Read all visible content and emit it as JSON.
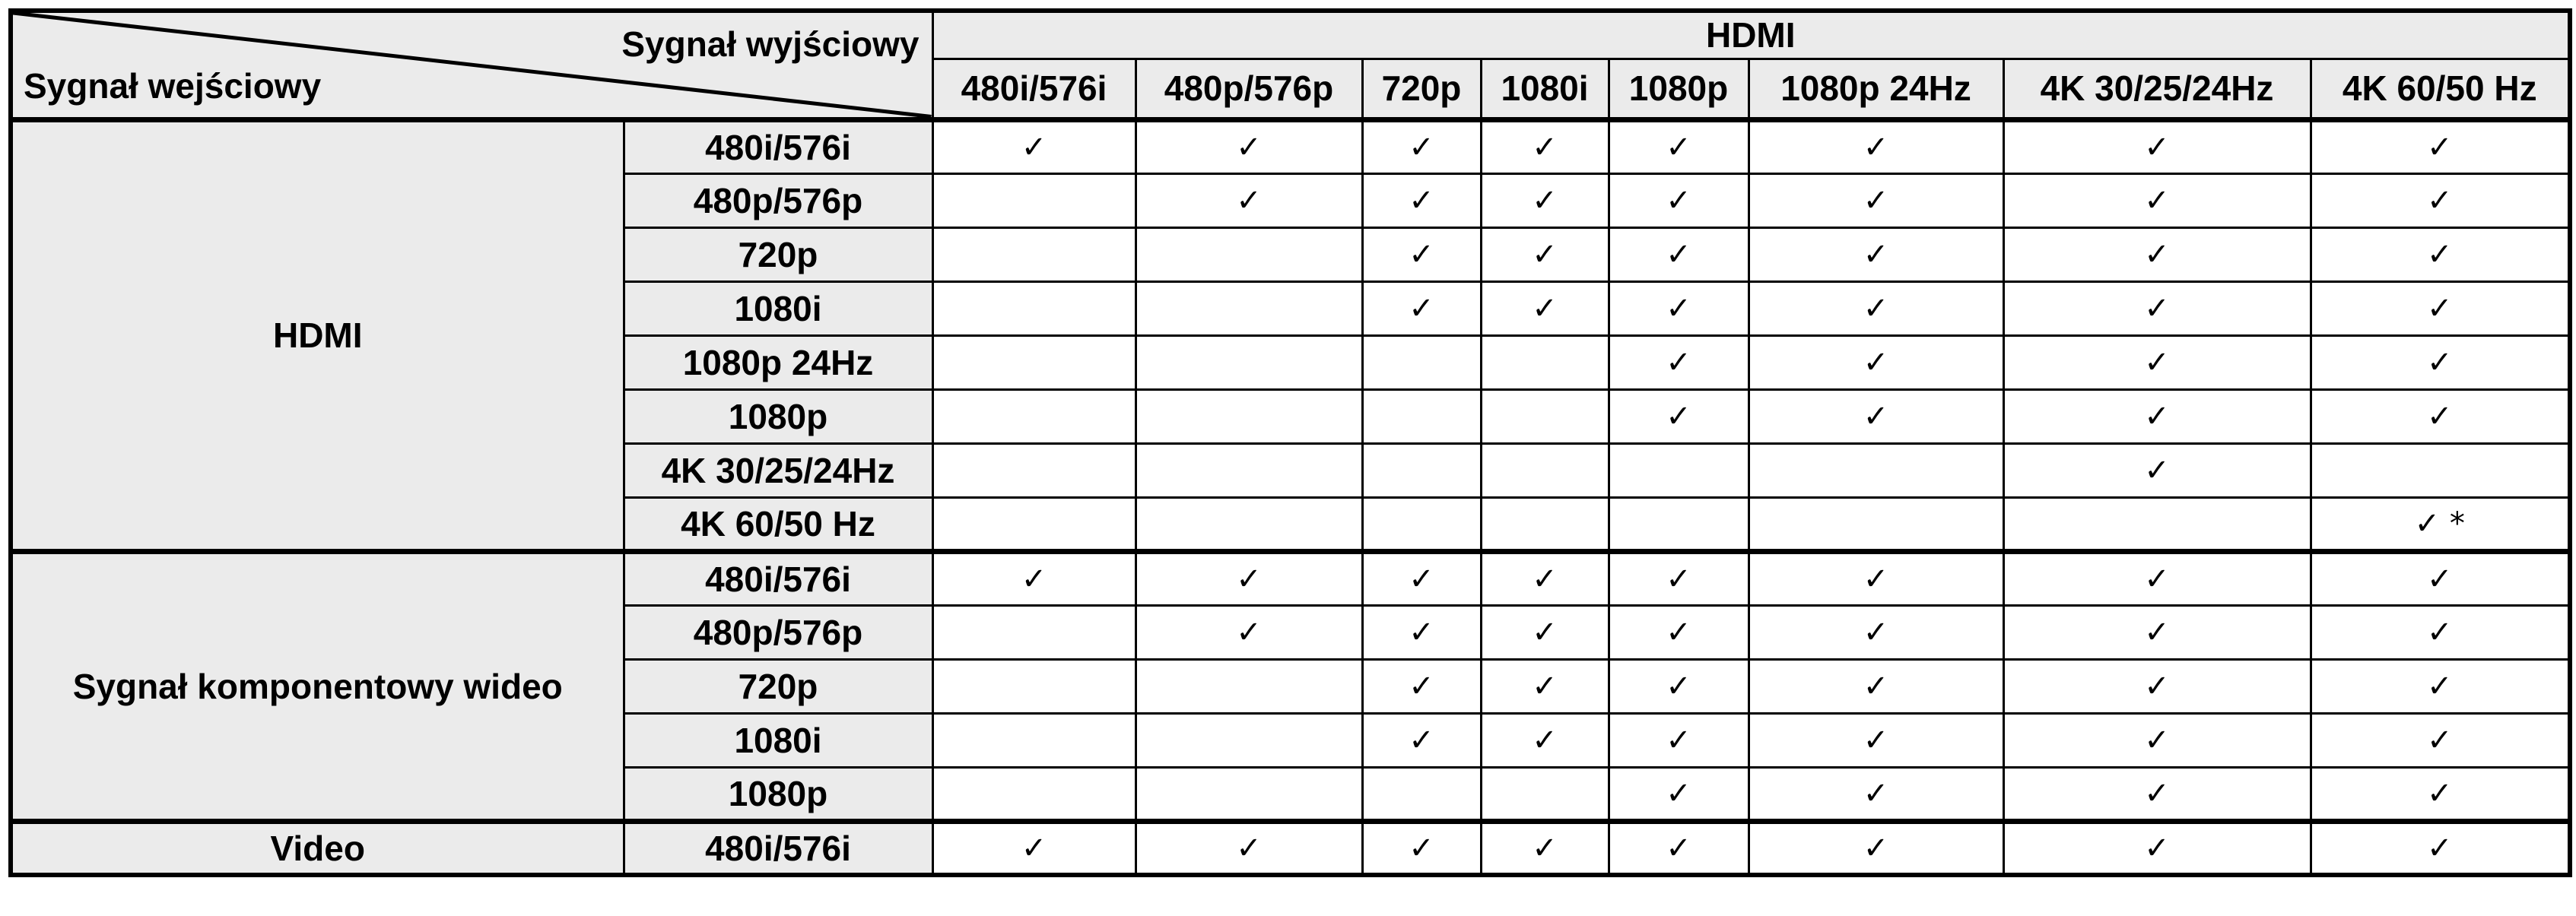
{
  "header": {
    "output_label": "Sygnał wyjściowy",
    "input_label": "Sygnał wejściowy",
    "output_group": "HDMI",
    "output_columns": [
      "480i/576i",
      "480p/576p",
      "720p",
      "1080i",
      "1080p",
      "1080p 24Hz",
      "4K 30/25/24Hz",
      "4K 60/50 Hz"
    ]
  },
  "groups": [
    {
      "name": "HDMI",
      "rows": [
        {
          "label": "480i/576i",
          "cells": [
            "✓",
            "✓",
            "✓",
            "✓",
            "✓",
            "✓",
            "✓",
            "✓"
          ]
        },
        {
          "label": "480p/576p",
          "cells": [
            "",
            "✓",
            "✓",
            "✓",
            "✓",
            "✓",
            "✓",
            "✓"
          ]
        },
        {
          "label": "720p",
          "cells": [
            "",
            "",
            "✓",
            "✓",
            "✓",
            "✓",
            "✓",
            "✓"
          ]
        },
        {
          "label": "1080i",
          "cells": [
            "",
            "",
            "✓",
            "✓",
            "✓",
            "✓",
            "✓",
            "✓"
          ]
        },
        {
          "label": "1080p 24Hz",
          "cells": [
            "",
            "",
            "",
            "",
            "✓",
            "✓",
            "✓",
            "✓"
          ]
        },
        {
          "label": "1080p",
          "cells": [
            "",
            "",
            "",
            "",
            "✓",
            "✓",
            "✓",
            "✓"
          ]
        },
        {
          "label": "4K 30/25/24Hz",
          "cells": [
            "",
            "",
            "",
            "",
            "",
            "",
            "✓",
            ""
          ]
        },
        {
          "label": "4K 60/50 Hz",
          "cells": [
            "",
            "",
            "",
            "",
            "",
            "",
            "",
            "✓ *"
          ]
        }
      ]
    },
    {
      "name": "Sygnał komponentowy wideo",
      "rows": [
        {
          "label": "480i/576i",
          "cells": [
            "✓",
            "✓",
            "✓",
            "✓",
            "✓",
            "✓",
            "✓",
            "✓"
          ]
        },
        {
          "label": "480p/576p",
          "cells": [
            "",
            "✓",
            "✓",
            "✓",
            "✓",
            "✓",
            "✓",
            "✓"
          ]
        },
        {
          "label": "720p",
          "cells": [
            "",
            "",
            "✓",
            "✓",
            "✓",
            "✓",
            "✓",
            "✓"
          ]
        },
        {
          "label": "1080i",
          "cells": [
            "",
            "",
            "✓",
            "✓",
            "✓",
            "✓",
            "✓",
            "✓"
          ]
        },
        {
          "label": "1080p",
          "cells": [
            "",
            "",
            "",
            "",
            "✓",
            "✓",
            "✓",
            "✓"
          ]
        }
      ]
    },
    {
      "name": "Video",
      "rows": [
        {
          "label": "480i/576i",
          "cells": [
            "✓",
            "✓",
            "✓",
            "✓",
            "✓",
            "✓",
            "✓",
            "✓"
          ]
        }
      ]
    }
  ]
}
